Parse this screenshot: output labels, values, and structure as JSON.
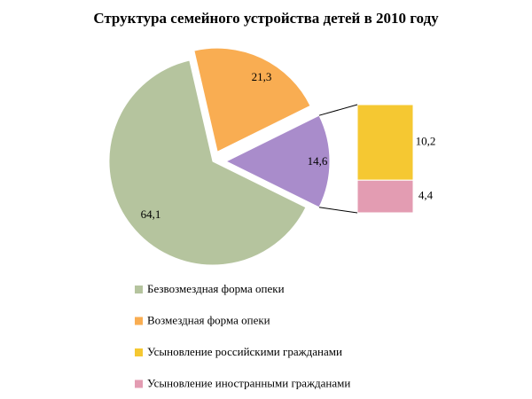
{
  "chart_data": {
    "type": "bar-of-pie",
    "title": "Структура семейного устройства детей в 2010 году",
    "categories": [
      "Безвозмездная форма опеки",
      "Возмездная форма опеки",
      null
    ],
    "values": [
      64.1,
      21.3,
      14.6
    ],
    "value_labels": [
      "64,1",
      "21,3",
      "14,6"
    ],
    "colors": [
      "#b5c49e",
      "#f9ad52",
      "#a98ccb"
    ],
    "bar_categories": [
      "Усыновление российскими гражданами",
      "Усыновление иностранными гражданами"
    ],
    "bar_values": [
      10.2,
      4.4
    ],
    "bar_value_labels": [
      "10,2",
      "4,4"
    ],
    "bar_colors": [
      "#f5c832",
      "#e39cb2"
    ]
  }
}
